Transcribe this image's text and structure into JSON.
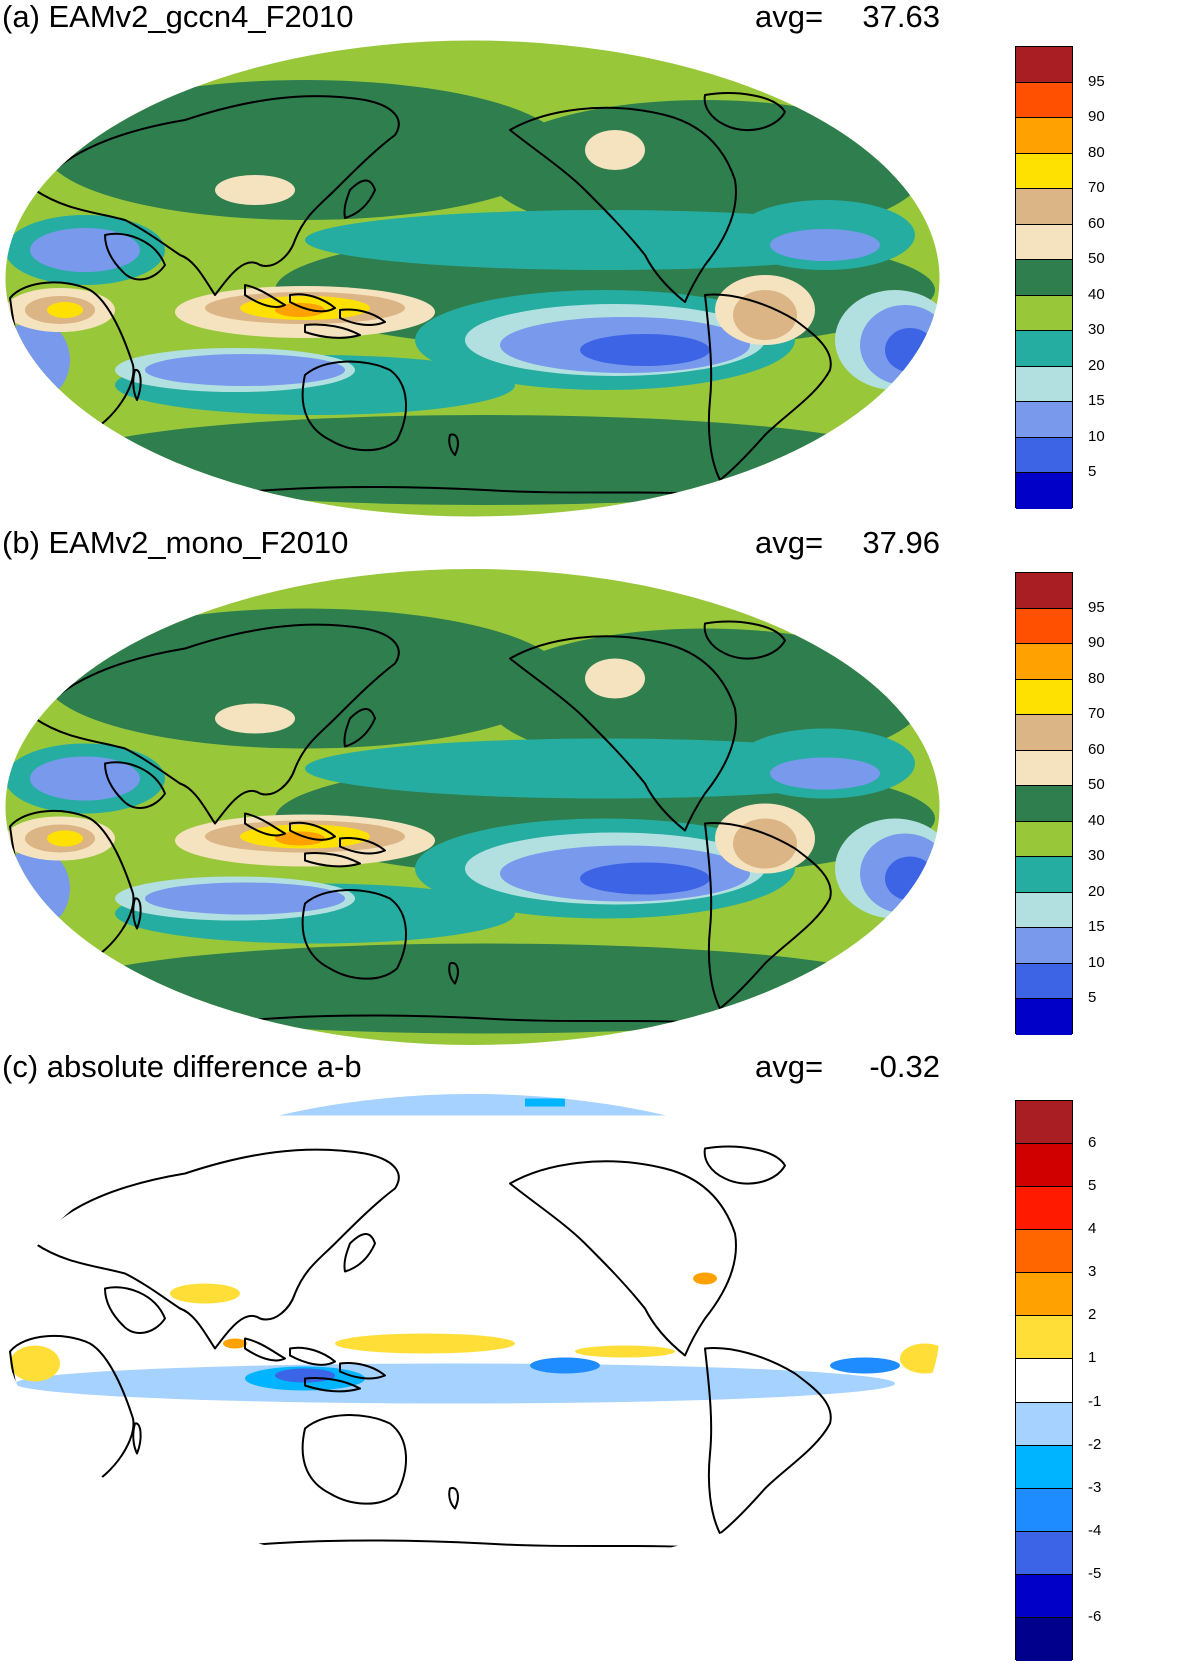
{
  "panels": [
    {
      "title": "(a) EAMv2_gccn4_F2010",
      "avg_label": "avg=",
      "avg_value": "37.63",
      "colorbar": {
        "labels": [
          "95",
          "90",
          "80",
          "70",
          "60",
          "50",
          "40",
          "30",
          "20",
          "15",
          "10",
          "5"
        ],
        "colors": [
          "#a81e23",
          "#ff4f00",
          "#ffa100",
          "#ffe100",
          "#dbb585",
          "#f5e2bf",
          "#2f7e4e",
          "#98c83a",
          "#25ada1",
          "#b2e0e0",
          "#7899ec",
          "#3d64e5",
          "#0000c8"
        ]
      },
      "palette": {
        "low": "#3d64e5",
        "low_mid": "#7899ec",
        "light": "#b2e0e0",
        "teal": "#25ada1",
        "lime": "#98c83a",
        "green": "#2f7e4e",
        "cream": "#f5e2bf",
        "tan": "#dbb585",
        "yellow": "#ffe100",
        "orange": "#ffa100"
      }
    },
    {
      "title": "(b) EAMv2_mono_F2010",
      "avg_label": "avg=",
      "avg_value": "37.96",
      "colorbar": {
        "labels": [
          "95",
          "90",
          "80",
          "70",
          "60",
          "50",
          "40",
          "30",
          "20",
          "15",
          "10",
          "5"
        ],
        "colors": [
          "#a81e23",
          "#ff4f00",
          "#ffa100",
          "#ffe100",
          "#dbb585",
          "#f5e2bf",
          "#2f7e4e",
          "#98c83a",
          "#25ada1",
          "#b2e0e0",
          "#7899ec",
          "#3d64e5",
          "#0000c8"
        ]
      },
      "palette": {
        "low": "#3d64e5",
        "low_mid": "#7899ec",
        "light": "#b2e0e0",
        "teal": "#25ada1",
        "lime": "#98c83a",
        "green": "#2f7e4e",
        "cream": "#f5e2bf",
        "tan": "#dbb585",
        "yellow": "#ffe100",
        "orange": "#ffa100"
      }
    },
    {
      "title": "(c) absolute difference a-b",
      "avg_label": "avg=",
      "avg_value": "-0.32",
      "colorbar": {
        "labels": [
          "6",
          "5",
          "4",
          "3",
          "2",
          "1",
          "-1",
          "-2",
          "-3",
          "-4",
          "-5",
          "-6"
        ],
        "colors": [
          "#a81e23",
          "#d10000",
          "#ff1a00",
          "#ff6600",
          "#ffa100",
          "#ffdf37",
          "#ffffff",
          "#a5d2ff",
          "#00b4ff",
          "#1e8cff",
          "#3c64e6",
          "#0000c8",
          "#00008c"
        ]
      },
      "palette": {
        "base": "#ffffff",
        "light_blue": "#a5d2ff",
        "blue": "#00b4ff",
        "mid_blue": "#1e8cff",
        "deep_blue": "#3c64e6",
        "yellow": "#ffdf37",
        "orange": "#ffa100"
      }
    }
  ]
}
